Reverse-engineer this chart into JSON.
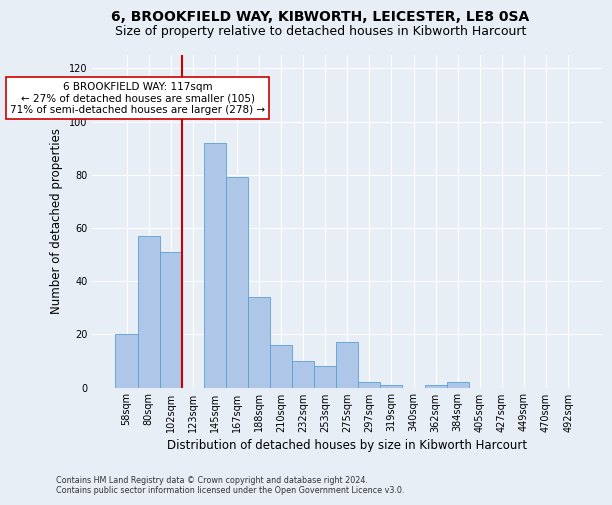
{
  "title1": "6, BROOKFIELD WAY, KIBWORTH, LEICESTER, LE8 0SA",
  "title2": "Size of property relative to detached houses in Kibworth Harcourt",
  "xlabel": "Distribution of detached houses by size in Kibworth Harcourt",
  "ylabel": "Number of detached properties",
  "footnote1": "Contains HM Land Registry data © Crown copyright and database right 2024.",
  "footnote2": "Contains public sector information licensed under the Open Government Licence v3.0.",
  "bar_labels": [
    "58sqm",
    "80sqm",
    "102sqm",
    "123sqm",
    "145sqm",
    "167sqm",
    "188sqm",
    "210sqm",
    "232sqm",
    "253sqm",
    "275sqm",
    "297sqm",
    "319sqm",
    "340sqm",
    "362sqm",
    "384sqm",
    "405sqm",
    "427sqm",
    "449sqm",
    "470sqm",
    "492sqm"
  ],
  "bar_values": [
    20,
    57,
    51,
    0,
    92,
    79,
    34,
    16,
    10,
    8,
    17,
    2,
    1,
    0,
    1,
    2,
    0,
    0,
    0,
    0,
    0
  ],
  "bar_color": "#aec6e8",
  "bar_edge_color": "#5a9fd4",
  "vline_x_idx": 2.5,
  "vline_color": "#cc0000",
  "annotation_text": "6 BROOKFIELD WAY: 117sqm\n← 27% of detached houses are smaller (105)\n71% of semi-detached houses are larger (278) →",
  "annotation_box_color": "#ffffff",
  "annotation_box_edge": "#cc0000",
  "ylim": [
    0,
    125
  ],
  "yticks": [
    0,
    20,
    40,
    60,
    80,
    100,
    120
  ],
  "background_color": "#e8eef6",
  "grid_color": "#ffffff",
  "title1_fontsize": 10,
  "title2_fontsize": 9,
  "xlabel_fontsize": 8.5,
  "ylabel_fontsize": 8.5,
  "annot_fontsize": 7.5,
  "tick_fontsize": 7.0,
  "footnote_fontsize": 5.8
}
